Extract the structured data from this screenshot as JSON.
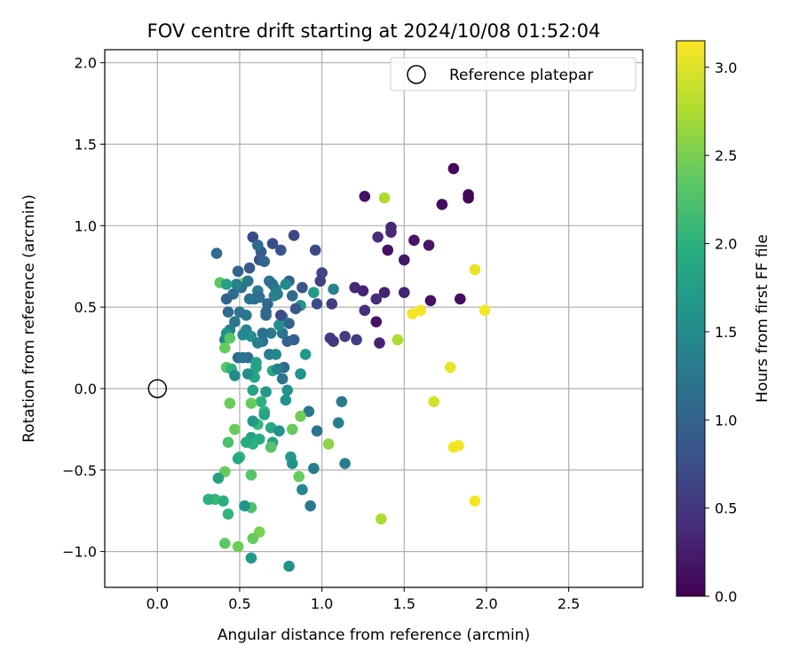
{
  "chart_data": {
    "type": "scatter",
    "title": "FOV centre drift starting at 2024/10/08 01:52:04",
    "xlabel": "Angular distance from reference (arcmin)",
    "ylabel": "Rotation from reference (arcmin)",
    "xlim": [
      -0.32,
      2.95
    ],
    "ylim": [
      -1.22,
      2.08
    ],
    "xticks": [
      0.0,
      0.5,
      1.0,
      1.5,
      2.0,
      2.5
    ],
    "xtick_labels": [
      "0.0",
      "0.5",
      "1.0",
      "1.5",
      "2.0",
      "2.5"
    ],
    "yticks": [
      -1.0,
      -0.5,
      0.0,
      0.5,
      1.0,
      1.5,
      2.0
    ],
    "ytick_labels": [
      "−1.0",
      "−0.5",
      "0.0",
      "0.5",
      "1.0",
      "1.5",
      "2.0"
    ],
    "grid": true,
    "legend": {
      "position": "top-right",
      "entries": [
        "Reference platepar"
      ]
    },
    "colorbar": {
      "label": "Hours from first FF file",
      "colormap": "viridis",
      "range": [
        0.0,
        3.15
      ],
      "ticks": [
        0.0,
        0.5,
        1.0,
        1.5,
        2.0,
        2.5,
        3.0
      ],
      "tick_labels": [
        "0.0",
        "0.5",
        "1.0",
        "1.5",
        "2.0",
        "2.5",
        "3.0"
      ]
    },
    "reference_point": {
      "name": "Reference platepar",
      "x": 0.0,
      "y": 0.0
    },
    "points": [
      [
        1.8,
        1.35,
        0.05
      ],
      [
        1.89,
        1.19,
        0.05
      ],
      [
        1.89,
        1.17,
        0.05
      ],
      [
        1.73,
        1.13,
        0.1
      ],
      [
        1.26,
        1.18,
        0.15
      ],
      [
        1.38,
        1.17,
        2.75
      ],
      [
        1.42,
        0.99,
        0.35
      ],
      [
        1.42,
        0.96,
        0.35
      ],
      [
        1.34,
        0.93,
        0.4
      ],
      [
        1.56,
        0.91,
        0.2
      ],
      [
        1.65,
        0.88,
        0.2
      ],
      [
        1.4,
        0.85,
        0.15
      ],
      [
        1.5,
        0.79,
        0.2
      ],
      [
        1.93,
        0.73,
        3.05
      ],
      [
        1.2,
        0.62,
        0.35
      ],
      [
        1.25,
        0.6,
        0.3
      ],
      [
        1.38,
        0.59,
        0.3
      ],
      [
        1.5,
        0.59,
        0.3
      ],
      [
        1.33,
        0.55,
        0.4
      ],
      [
        1.66,
        0.54,
        0.15
      ],
      [
        1.84,
        0.55,
        0.1
      ],
      [
        1.26,
        0.48,
        0.4
      ],
      [
        1.6,
        0.48,
        3.1
      ],
      [
        1.55,
        0.46,
        3.1
      ],
      [
        1.99,
        0.48,
        3.1
      ],
      [
        1.33,
        0.41,
        0.15
      ],
      [
        1.46,
        0.3,
        2.75
      ],
      [
        1.35,
        0.28,
        0.3
      ],
      [
        1.21,
        0.3,
        0.55
      ],
      [
        1.14,
        0.32,
        0.55
      ],
      [
        1.05,
        0.31,
        0.55
      ],
      [
        1.07,
        0.29,
        0.5
      ],
      [
        1.78,
        0.13,
        3.05
      ],
      [
        1.68,
        -0.08,
        2.95
      ],
      [
        1.8,
        -0.36,
        3.1
      ],
      [
        1.83,
        -0.35,
        3.1
      ],
      [
        1.93,
        -0.69,
        3.1
      ],
      [
        1.36,
        -0.8,
        2.75
      ],
      [
        1.04,
        -0.34,
        2.6
      ],
      [
        1.12,
        -0.08,
        1.3
      ],
      [
        1.1,
        -0.21,
        1.35
      ],
      [
        1.14,
        -0.46,
        1.35
      ],
      [
        0.97,
        -0.26,
        1.2
      ],
      [
        0.92,
        -0.14,
        1.25
      ],
      [
        0.95,
        -0.49,
        1.3
      ],
      [
        0.93,
        -0.72,
        1.25
      ],
      [
        0.88,
        -0.62,
        1.45
      ],
      [
        0.86,
        -0.54,
        2.4
      ],
      [
        0.87,
        -0.17,
        2.45
      ],
      [
        0.82,
        -0.25,
        2.4
      ],
      [
        0.81,
        -0.42,
        1.7
      ],
      [
        0.82,
        -0.46,
        1.6
      ],
      [
        0.78,
        -0.07,
        1.6
      ],
      [
        0.8,
        -1.09,
        1.6
      ],
      [
        0.83,
        0.94,
        0.65
      ],
      [
        0.96,
        0.85,
        0.7
      ],
      [
        1.0,
        0.71,
        0.65
      ],
      [
        0.99,
        0.66,
        0.6
      ],
      [
        1.07,
        0.61,
        1.4
      ],
      [
        1.06,
        0.52,
        0.55
      ],
      [
        0.95,
        0.59,
        1.7
      ],
      [
        0.97,
        0.52,
        0.75
      ],
      [
        0.9,
        0.21,
        1.7
      ],
      [
        0.87,
        0.09,
        1.6
      ],
      [
        0.88,
        0.62,
        0.8
      ],
      [
        0.87,
        0.51,
        1.6
      ],
      [
        0.84,
        0.49,
        0.85
      ],
      [
        0.8,
        0.66,
        1.0
      ],
      [
        0.82,
        0.57,
        1.1
      ],
      [
        0.8,
        0.4,
        1.0
      ],
      [
        0.83,
        0.3,
        0.95
      ],
      [
        0.79,
        0.29,
        1.0
      ],
      [
        0.76,
        0.34,
        1.2
      ],
      [
        0.76,
        0.44,
        1.3
      ],
      [
        0.77,
        0.13,
        1.1
      ],
      [
        0.76,
        0.06,
        1.2
      ],
      [
        0.74,
        0.39,
        1.55
      ],
      [
        0.75,
        0.45,
        0.7
      ],
      [
        0.75,
        0.85,
        0.8
      ],
      [
        0.7,
        0.89,
        0.75
      ],
      [
        0.72,
        0.61,
        1.5
      ],
      [
        0.7,
        0.64,
        1.2
      ],
      [
        0.71,
        0.57,
        1.4
      ],
      [
        0.69,
        0.34,
        1.3
      ],
      [
        0.7,
        0.11,
        1.9
      ],
      [
        0.67,
        0.52,
        1.05
      ],
      [
        0.66,
        0.47,
        1.1
      ],
      [
        0.68,
        0.21,
        1.3
      ],
      [
        0.64,
        0.29,
        1.2
      ],
      [
        0.69,
        -0.24,
        1.9
      ],
      [
        0.7,
        -0.33,
        1.8
      ],
      [
        0.69,
        -0.36,
        2.3
      ],
      [
        0.74,
        -0.26,
        1.6
      ],
      [
        0.66,
        -0.02,
        1.65
      ],
      [
        0.65,
        -0.14,
        2.1
      ],
      [
        0.65,
        -0.16,
        1.85
      ],
      [
        0.63,
        -0.08,
        2.0
      ],
      [
        0.62,
        0.79,
        0.8
      ],
      [
        0.63,
        0.84,
        0.9
      ],
      [
        0.58,
        0.93,
        0.7
      ],
      [
        0.61,
        0.88,
        1.1
      ],
      [
        0.56,
        0.74,
        0.9
      ],
      [
        0.61,
        0.6,
        1.3
      ],
      [
        0.59,
        0.55,
        1.1
      ],
      [
        0.56,
        0.55,
        1.2
      ],
      [
        0.54,
        0.45,
        1.3
      ],
      [
        0.53,
        0.65,
        2.5
      ],
      [
        0.54,
        0.36,
        1.4
      ],
      [
        0.57,
        0.32,
        1.55
      ],
      [
        0.55,
        0.19,
        1.1
      ],
      [
        0.59,
        0.07,
        1.85
      ],
      [
        0.6,
        0.13,
        1.8
      ],
      [
        0.6,
        0.16,
        1.8
      ],
      [
        0.58,
        -0.01,
        1.8
      ],
      [
        0.57,
        -0.09,
        2.4
      ],
      [
        0.61,
        -0.22,
        2.1
      ],
      [
        0.58,
        -0.2,
        1.65
      ],
      [
        0.57,
        -0.3,
        1.75
      ],
      [
        0.62,
        -0.31,
        1.95
      ],
      [
        0.58,
        -0.34,
        2.0
      ],
      [
        0.54,
        -0.33,
        1.9
      ],
      [
        0.57,
        -0.53,
        2.3
      ],
      [
        0.57,
        -0.73,
        2.25
      ],
      [
        0.53,
        -0.72,
        1.65
      ],
      [
        0.62,
        -0.88,
        2.5
      ],
      [
        0.58,
        -0.92,
        2.4
      ],
      [
        0.51,
        0.62,
        1.2
      ],
      [
        0.48,
        0.64,
        1.4
      ],
      [
        0.46,
        0.58,
        1.1
      ],
      [
        0.5,
        0.47,
        1.2
      ],
      [
        0.47,
        0.41,
        1.25
      ],
      [
        0.44,
        0.36,
        1.3
      ],
      [
        0.42,
        0.55,
        1.0
      ],
      [
        0.43,
        0.47,
        1.1
      ],
      [
        0.41,
        0.3,
        1.4
      ],
      [
        0.38,
        0.65,
        2.35
      ],
      [
        0.42,
        0.64,
        1.8
      ],
      [
        0.36,
        0.83,
        1.1
      ],
      [
        0.42,
        0.34,
        1.6
      ],
      [
        0.44,
        0.31,
        2.3
      ],
      [
        0.41,
        0.25,
        2.4
      ],
      [
        0.42,
        0.13,
        2.3
      ],
      [
        0.45,
        0.12,
        2.0
      ],
      [
        0.47,
        0.08,
        1.5
      ],
      [
        0.49,
        0.19,
        1.1
      ],
      [
        0.52,
        0.19,
        1.2
      ],
      [
        0.44,
        -0.09,
        2.4
      ],
      [
        0.47,
        -0.25,
        2.4
      ],
      [
        0.43,
        -0.33,
        2.25
      ],
      [
        0.5,
        -0.42,
        2.15
      ],
      [
        0.49,
        -0.43,
        1.9
      ],
      [
        0.41,
        -0.51,
        2.4
      ],
      [
        0.37,
        -0.55,
        1.8
      ],
      [
        0.35,
        -0.68,
        2.1
      ],
      [
        0.31,
        -0.68,
        2.0
      ],
      [
        0.4,
        -0.69,
        1.95
      ],
      [
        0.43,
        -0.77,
        2.05
      ],
      [
        0.41,
        -0.95,
        2.35
      ],
      [
        0.49,
        -0.97,
        2.45
      ],
      [
        0.57,
        -1.04,
        1.7
      ],
      [
        0.49,
        0.72,
        1.0
      ],
      [
        0.55,
        0.66,
        1.25
      ],
      [
        0.65,
        0.78,
        1.05
      ],
      [
        0.68,
        0.66,
        1.2
      ],
      [
        0.73,
        0.58,
        1.35
      ],
      [
        0.78,
        0.64,
        1.5
      ],
      [
        0.64,
        0.34,
        1.15
      ],
      [
        0.61,
        0.28,
        1.35
      ],
      [
        0.72,
        0.21,
        1.45
      ],
      [
        0.66,
        0.45,
        1.05
      ],
      [
        0.62,
        0.56,
        1.15
      ],
      [
        0.52,
        0.33,
        1.45
      ],
      [
        0.55,
        0.09,
        1.55
      ],
      [
        0.79,
        -0.01,
        1.6
      ],
      [
        0.73,
        0.12,
        1.4
      ]
    ]
  }
}
